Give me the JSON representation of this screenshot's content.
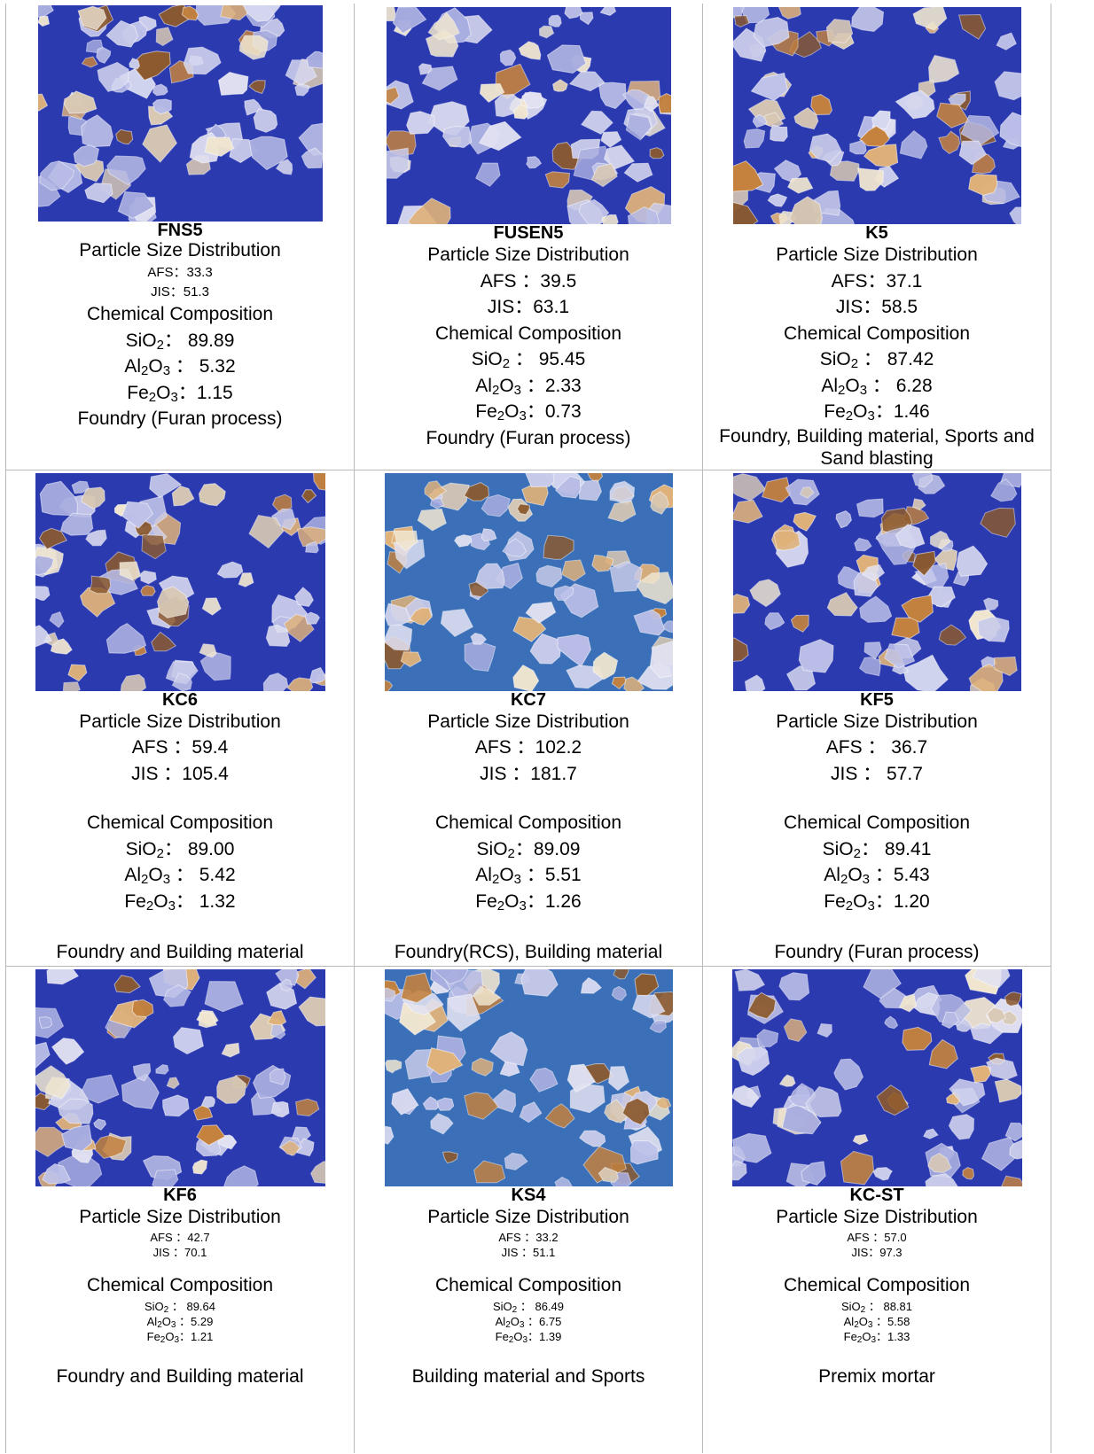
{
  "colors": {
    "background_blue": "#2c3ab0",
    "grain_clear": "#c9cbea",
    "grain_orange": "#c4823e",
    "grid_border": "#b9b9b9"
  },
  "labels": {
    "psd": "Particle Size Distribution",
    "chem": "Chemical Composition"
  },
  "products": [
    {
      "name": "FNS5",
      "afs": "AFS：33.3",
      "jis": "JIS：51.3",
      "sio2_prefix": "SiO",
      "sio2_value": "：  89.89",
      "al2o3_value": "  ：  5.32",
      "fe2o3_value": "：1.15",
      "use": "Foundry (Furan process)"
    },
    {
      "name": "FUSEN5",
      "afs": "AFS  ：39.5",
      "jis": "JIS：63.1",
      "sio2_value": "  ：  95.45",
      "al2o3_value": " ：2.33",
      "fe2o3_value": "：0.73",
      "use": "Foundry (Furan process)"
    },
    {
      "name": "K5",
      "afs": "AFS：37.1",
      "jis": "JIS：58.5",
      "sio2_value": "  ：  87.42",
      "al2o3_value": " ：  6.28",
      "fe2o3_value": "：1.46",
      "use": "Foundry, Building material, Sports and Sand blasting"
    },
    {
      "name": "KC6",
      "afs": "AFS  ：59.4",
      "jis": "JIS  ：105.4",
      "sio2_value": "：  89.00",
      "al2o3_value": "  ：  5.42",
      "fe2o3_value": "：  1.32",
      "use": "Foundry and Building material"
    },
    {
      "name": "KC7",
      "afs": "AFS  ：102.2",
      "jis": "JIS  ：181.7",
      "sio2_value": "：89.09",
      "al2o3_value": "  ：5.51",
      "fe2o3_value": "：1.26",
      "use": "Foundry(RCS), Building material"
    },
    {
      "name": "KF5",
      "afs": "AFS  ：  36.7",
      "jis": "JIS  ：  57.7",
      "sio2_value": "：  89.41",
      "al2o3_value": "  ：5.43",
      "fe2o3_value": "：1.20",
      "use": "Foundry (Furan process)"
    },
    {
      "name": "KF6",
      "afs": "AFS  ：42.7",
      "jis": "JIS  ：70.1",
      "sio2_value": "  ：  89.64",
      "al2o3_value": "  ：5.29",
      "fe2o3_value": "：1.21",
      "use": "Foundry and Building material"
    },
    {
      "name": "KS4",
      "afs": "AFS  ：33.2",
      "jis": "JIS  ：51.1",
      "sio2_value": "  ：  86.49",
      "al2o3_value": "  ：6.75",
      "fe2o3_value": "：1.39",
      "use": "Building material and Sports"
    },
    {
      "name": "KC-ST",
      "afs": "AFS  ：57.0",
      "jis": "JIS：97.3",
      "sio2_value": "  ：  88.81",
      "al2o3_value": "  ：5.58",
      "fe2o3_value": "：1.33",
      "use": "Premix mortar"
    }
  ]
}
